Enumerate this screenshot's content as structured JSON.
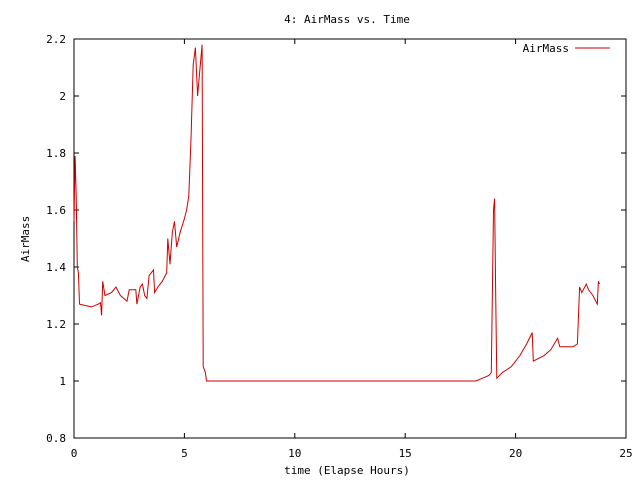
{
  "chart_data": {
    "type": "line",
    "title": "4: AirMass vs. Time",
    "xlabel": "time (Elapse Hours)",
    "ylabel": "AirMass",
    "xlim": [
      0,
      25
    ],
    "ylim": [
      0.8,
      2.2
    ],
    "x_ticks": [
      0,
      5,
      10,
      15,
      20,
      25
    ],
    "y_ticks": [
      0.8,
      1,
      1.2,
      1.4,
      1.6,
      1.8,
      2,
      2.2
    ],
    "x_tick_labels": [
      "0",
      "5",
      "10",
      "15",
      "20",
      "25"
    ],
    "y_tick_labels": [
      "0.8",
      "1",
      "1.2",
      "1.4",
      "1.6",
      "1.8",
      "2",
      "2.2"
    ],
    "grid": false,
    "legend_position": "top-right",
    "series": [
      {
        "name": "AirMass",
        "color": "#cc0000",
        "points": [
          [
            0.0,
            1.56
          ],
          [
            0.05,
            1.79
          ],
          [
            0.1,
            1.65
          ],
          [
            0.15,
            1.4
          ],
          [
            0.2,
            1.38
          ],
          [
            0.25,
            1.27
          ],
          [
            0.5,
            1.265
          ],
          [
            0.8,
            1.26
          ],
          [
            1.1,
            1.27
          ],
          [
            1.2,
            1.275
          ],
          [
            1.25,
            1.23
          ],
          [
            1.3,
            1.35
          ],
          [
            1.4,
            1.3
          ],
          [
            1.7,
            1.31
          ],
          [
            1.9,
            1.33
          ],
          [
            2.1,
            1.3
          ],
          [
            2.4,
            1.28
          ],
          [
            2.5,
            1.32
          ],
          [
            2.8,
            1.32
          ],
          [
            2.85,
            1.27
          ],
          [
            3.0,
            1.33
          ],
          [
            3.1,
            1.34
          ],
          [
            3.2,
            1.3
          ],
          [
            3.3,
            1.29
          ],
          [
            3.4,
            1.37
          ],
          [
            3.6,
            1.39
          ],
          [
            3.65,
            1.31
          ],
          [
            3.8,
            1.33
          ],
          [
            4.0,
            1.35
          ],
          [
            4.2,
            1.38
          ],
          [
            4.25,
            1.5
          ],
          [
            4.35,
            1.41
          ],
          [
            4.45,
            1.52
          ],
          [
            4.55,
            1.56
          ],
          [
            4.65,
            1.47
          ],
          [
            4.8,
            1.52
          ],
          [
            5.0,
            1.57
          ],
          [
            5.1,
            1.6
          ],
          [
            5.2,
            1.65
          ],
          [
            5.3,
            1.85
          ],
          [
            5.4,
            2.11
          ],
          [
            5.5,
            2.17
          ],
          [
            5.6,
            2.0
          ],
          [
            5.65,
            2.05
          ],
          [
            5.8,
            2.18
          ],
          [
            5.85,
            1.05
          ],
          [
            5.95,
            1.03
          ],
          [
            6.0,
            1.0
          ],
          [
            18.2,
            1.0
          ],
          [
            18.5,
            1.01
          ],
          [
            18.8,
            1.02
          ],
          [
            18.9,
            1.03
          ],
          [
            19.0,
            1.6
          ],
          [
            19.05,
            1.64
          ],
          [
            19.1,
            1.3
          ],
          [
            19.15,
            1.01
          ],
          [
            19.4,
            1.03
          ],
          [
            19.8,
            1.05
          ],
          [
            20.2,
            1.09
          ],
          [
            20.5,
            1.13
          ],
          [
            20.75,
            1.17
          ],
          [
            20.8,
            1.07
          ],
          [
            21.3,
            1.09
          ],
          [
            21.6,
            1.11
          ],
          [
            21.9,
            1.15
          ],
          [
            22.0,
            1.12
          ],
          [
            22.6,
            1.12
          ],
          [
            22.8,
            1.13
          ],
          [
            22.9,
            1.33
          ],
          [
            23.0,
            1.31
          ],
          [
            23.2,
            1.34
          ],
          [
            23.3,
            1.32
          ],
          [
            23.5,
            1.3
          ],
          [
            23.7,
            1.27
          ],
          [
            23.75,
            1.35
          ],
          [
            23.8,
            1.34
          ]
        ]
      }
    ]
  }
}
